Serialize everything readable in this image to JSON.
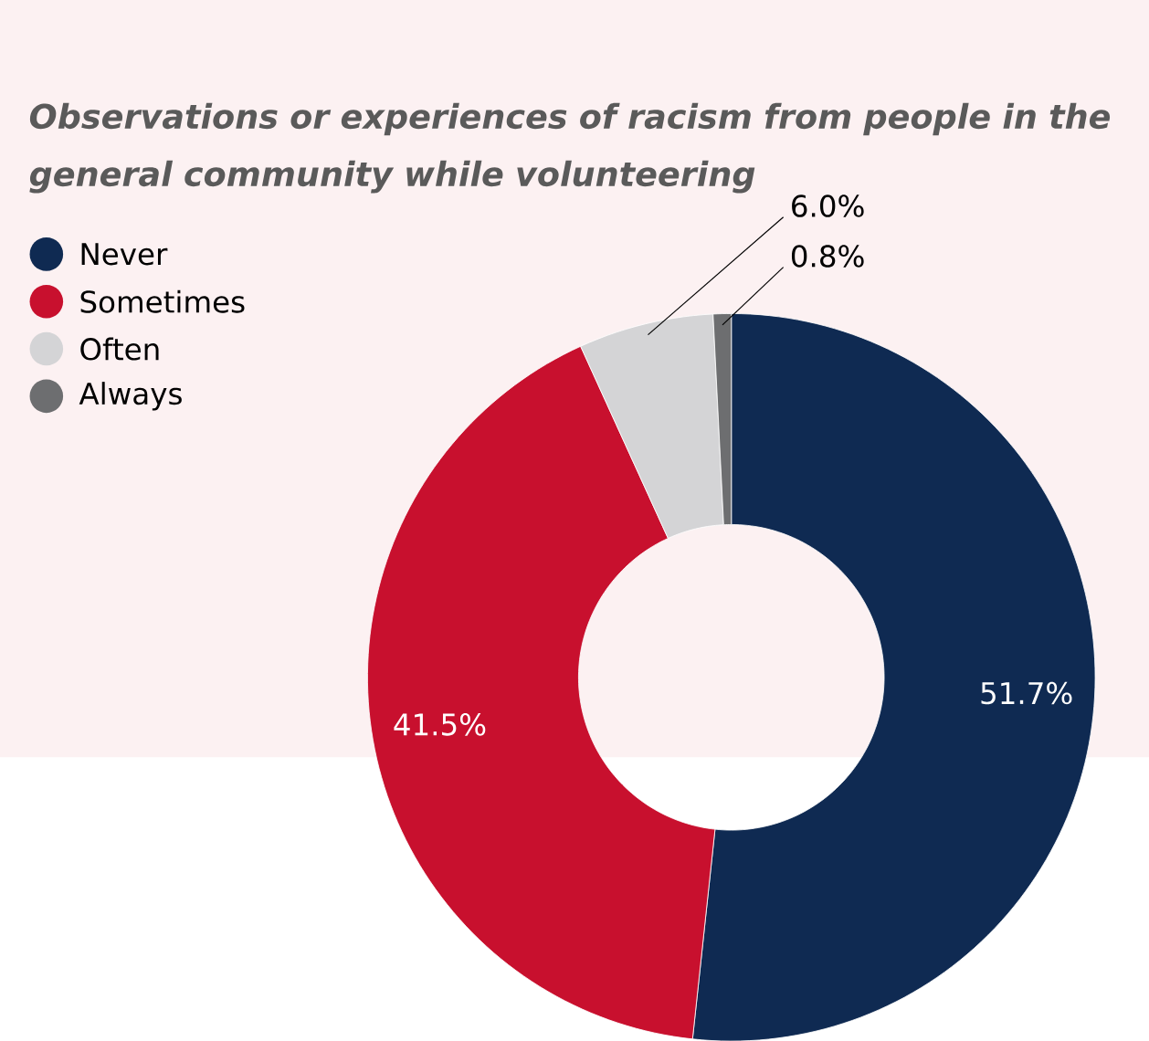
{
  "chart_data": {
    "type": "donut",
    "title": "Observations or experiences of racism from people in the general community while volunteering",
    "categories": [
      "Never",
      "Sometimes",
      "Often",
      "Always"
    ],
    "values": [
      51.7,
      41.5,
      6.0,
      0.8
    ],
    "colors": [
      "#0f2a52",
      "#c8102e",
      "#d4d4d6",
      "#6d6e70"
    ],
    "value_labels": [
      "51.7%",
      "41.5%",
      "6.0%",
      "0.8%"
    ],
    "legend": "top left"
  }
}
